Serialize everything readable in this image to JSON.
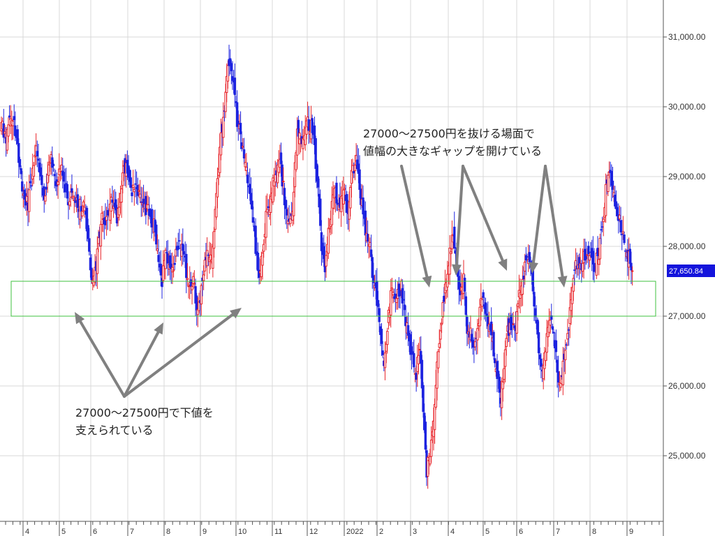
{
  "chart_data": {
    "type": "candlestick",
    "ylim": [
      24000,
      31900
    ],
    "y_ticks": [
      {
        "value": 25000,
        "label": "25,000.00"
      },
      {
        "value": 26000,
        "label": "26,000.00"
      },
      {
        "value": 27000,
        "label": "27,000.00"
      },
      {
        "value": 28000,
        "label": "28,000.00"
      },
      {
        "value": 29000,
        "label": "29,000.00"
      },
      {
        "value": 30000,
        "label": "30,000.00"
      },
      {
        "value": 31000,
        "label": "31,000.00"
      }
    ],
    "x_months": [
      "4",
      "5",
      "6",
      "7",
      "8",
      "9",
      "10",
      "11",
      "12",
      "2022",
      "2",
      "3",
      "4",
      "5",
      "6",
      "7",
      "8",
      "9"
    ],
    "last_price": {
      "value": 27650,
      "label": "27,650.84"
    },
    "band": {
      "low": 27000,
      "high": 27500
    },
    "colors": {
      "up": "#e8242a",
      "down": "#1d23e0",
      "band": "#3fc23f",
      "arrow": "#808080",
      "grid": "#d9d9d9",
      "price_tag": "#1414dc"
    },
    "annotations": [
      {
        "id": "top",
        "lines": [
          "27000～27500円を抜ける場面で",
          "値幅の大きなギャップを開けている"
        ]
      },
      {
        "id": "bottom",
        "lines": [
          "27000～27500円で下値を",
          "支えられている"
        ]
      }
    ],
    "anchors": [
      [
        0,
        29800
      ],
      [
        4,
        29500
      ],
      [
        8,
        29900
      ],
      [
        13,
        29600
      ],
      [
        18,
        28800
      ],
      [
        23,
        28600
      ],
      [
        27,
        29100
      ],
      [
        30,
        29400
      ],
      [
        33,
        29000
      ],
      [
        37,
        28600
      ],
      [
        42,
        29300
      ],
      [
        47,
        28900
      ],
      [
        52,
        29100
      ],
      [
        57,
        28700
      ],
      [
        62,
        28700
      ],
      [
        67,
        28600
      ],
      [
        72,
        28600
      ],
      [
        75,
        28000
      ],
      [
        79,
        27500
      ],
      [
        82,
        27700
      ],
      [
        86,
        28400
      ],
      [
        90,
        28400
      ],
      [
        95,
        28600
      ],
      [
        100,
        28400
      ],
      [
        105,
        29000
      ],
      [
        108,
        29200
      ],
      [
        112,
        28800
      ],
      [
        118,
        28800
      ],
      [
        122,
        28600
      ],
      [
        127,
        28500
      ],
      [
        132,
        28300
      ],
      [
        136,
        27800
      ],
      [
        139,
        27500
      ],
      [
        142,
        28000
      ],
      [
        146,
        27600
      ],
      [
        150,
        27800
      ],
      [
        154,
        28100
      ],
      [
        158,
        27900
      ],
      [
        162,
        27400
      ],
      [
        166,
        27500
      ],
      [
        170,
        27000
      ],
      [
        174,
        27500
      ],
      [
        178,
        27900
      ],
      [
        182,
        27900
      ],
      [
        186,
        28700
      ],
      [
        190,
        29600
      ],
      [
        193,
        30000
      ],
      [
        196,
        30500
      ],
      [
        198,
        30600
      ],
      [
        201,
        30300
      ],
      [
        204,
        29800
      ],
      [
        208,
        29500
      ],
      [
        211,
        29200
      ],
      [
        214,
        28800
      ],
      [
        217,
        28600
      ],
      [
        220,
        27900
      ],
      [
        223,
        27600
      ],
      [
        226,
        28000
      ],
      [
        229,
        28400
      ],
      [
        233,
        28700
      ],
      [
        237,
        29100
      ],
      [
        241,
        29200
      ],
      [
        245,
        28700
      ],
      [
        248,
        28300
      ],
      [
        252,
        28500
      ],
      [
        256,
        29700
      ],
      [
        260,
        29500
      ],
      [
        264,
        29800
      ],
      [
        268,
        29700
      ],
      [
        271,
        29400
      ],
      [
        274,
        28800
      ],
      [
        277,
        28000
      ],
      [
        280,
        27700
      ],
      [
        284,
        28300
      ],
      [
        288,
        28800
      ],
      [
        292,
        28600
      ],
      [
        296,
        28800
      ],
      [
        300,
        28500
      ],
      [
        303,
        29000
      ],
      [
        307,
        29200
      ],
      [
        311,
        28700
      ],
      [
        314,
        28300
      ],
      [
        318,
        28100
      ],
      [
        322,
        27500
      ],
      [
        325,
        27200
      ],
      [
        328,
        26800
      ],
      [
        331,
        26200
      ],
      [
        335,
        27000
      ],
      [
        338,
        27400
      ],
      [
        342,
        27300
      ],
      [
        346,
        27400
      ],
      [
        349,
        27000
      ],
      [
        353,
        26600
      ],
      [
        356,
        26400
      ],
      [
        359,
        26200
      ],
      [
        362,
        26600
      ],
      [
        366,
        25300
      ],
      [
        368,
        24800
      ],
      [
        371,
        25000
      ],
      [
        374,
        25400
      ],
      [
        376,
        26100
      ],
      [
        380,
        26800
      ],
      [
        383,
        27300
      ],
      [
        386,
        27500
      ],
      [
        388,
        27900
      ],
      [
        391,
        28200
      ],
      [
        394,
        27700
      ],
      [
        397,
        27300
      ],
      [
        400,
        27500
      ],
      [
        403,
        26800
      ],
      [
        406,
        26800
      ],
      [
        409,
        26500
      ],
      [
        413,
        27000
      ],
      [
        416,
        27300
      ],
      [
        420,
        26900
      ],
      [
        423,
        26900
      ],
      [
        426,
        26500
      ],
      [
        429,
        26200
      ],
      [
        432,
        25800
      ],
      [
        435,
        26300
      ],
      [
        438,
        26800
      ],
      [
        442,
        26900
      ],
      [
        445,
        26900
      ],
      [
        448,
        27300
      ],
      [
        452,
        27600
      ],
      [
        455,
        27800
      ],
      [
        458,
        27800
      ],
      [
        460,
        27400
      ],
      [
        463,
        26800
      ],
      [
        466,
        26400
      ],
      [
        469,
        26200
      ],
      [
        472,
        26700
      ],
      [
        475,
        27000
      ],
      [
        478,
        26800
      ],
      [
        481,
        26200
      ],
      [
        484,
        26000
      ],
      [
        487,
        26400
      ],
      [
        490,
        26700
      ],
      [
        493,
        27200
      ],
      [
        497,
        27800
      ],
      [
        501,
        27700
      ],
      [
        505,
        27900
      ],
      [
        509,
        27900
      ],
      [
        513,
        27700
      ],
      [
        517,
        27900
      ],
      [
        520,
        28300
      ],
      [
        524,
        29000
      ],
      [
        527,
        29100
      ],
      [
        531,
        28600
      ],
      [
        535,
        28400
      ],
      [
        539,
        28000
      ],
      [
        543,
        27850
      ],
      [
        546,
        27650
      ]
    ]
  }
}
